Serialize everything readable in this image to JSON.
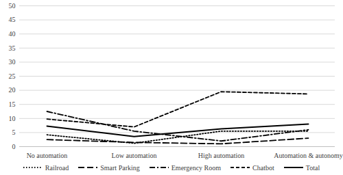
{
  "chart_data": {
    "type": "line",
    "categories": [
      "No automation",
      "Low automation",
      "High automation",
      "Automation & autonomy"
    ],
    "series": [
      {
        "name": "Railroad",
        "color": "#000000",
        "line_style": "dotted",
        "values": [
          4.2,
          1.2,
          5.5,
          5.5
        ]
      },
      {
        "name": "Smart Parking",
        "color": "#000000",
        "line_style": "long_dash",
        "values": [
          2.5,
          1.5,
          1.0,
          3.0
        ]
      },
      {
        "name": "Emergency Room",
        "color": "#000000",
        "line_style": "dash_dot",
        "values": [
          12.5,
          5.5,
          2.0,
          6.0
        ]
      },
      {
        "name": "Chatbot",
        "color": "#000000",
        "line_style": "dashed",
        "values": [
          9.8,
          7.0,
          19.5,
          18.7
        ]
      },
      {
        "name": "Total",
        "color": "#000000",
        "line_style": "solid",
        "values": [
          7.3,
          3.6,
          6.3,
          8.0
        ]
      }
    ],
    "ylim": [
      0,
      50
    ],
    "yticks": [
      0,
      5,
      10,
      15,
      20,
      25,
      30,
      35,
      40,
      45,
      50
    ],
    "grid": true
  }
}
